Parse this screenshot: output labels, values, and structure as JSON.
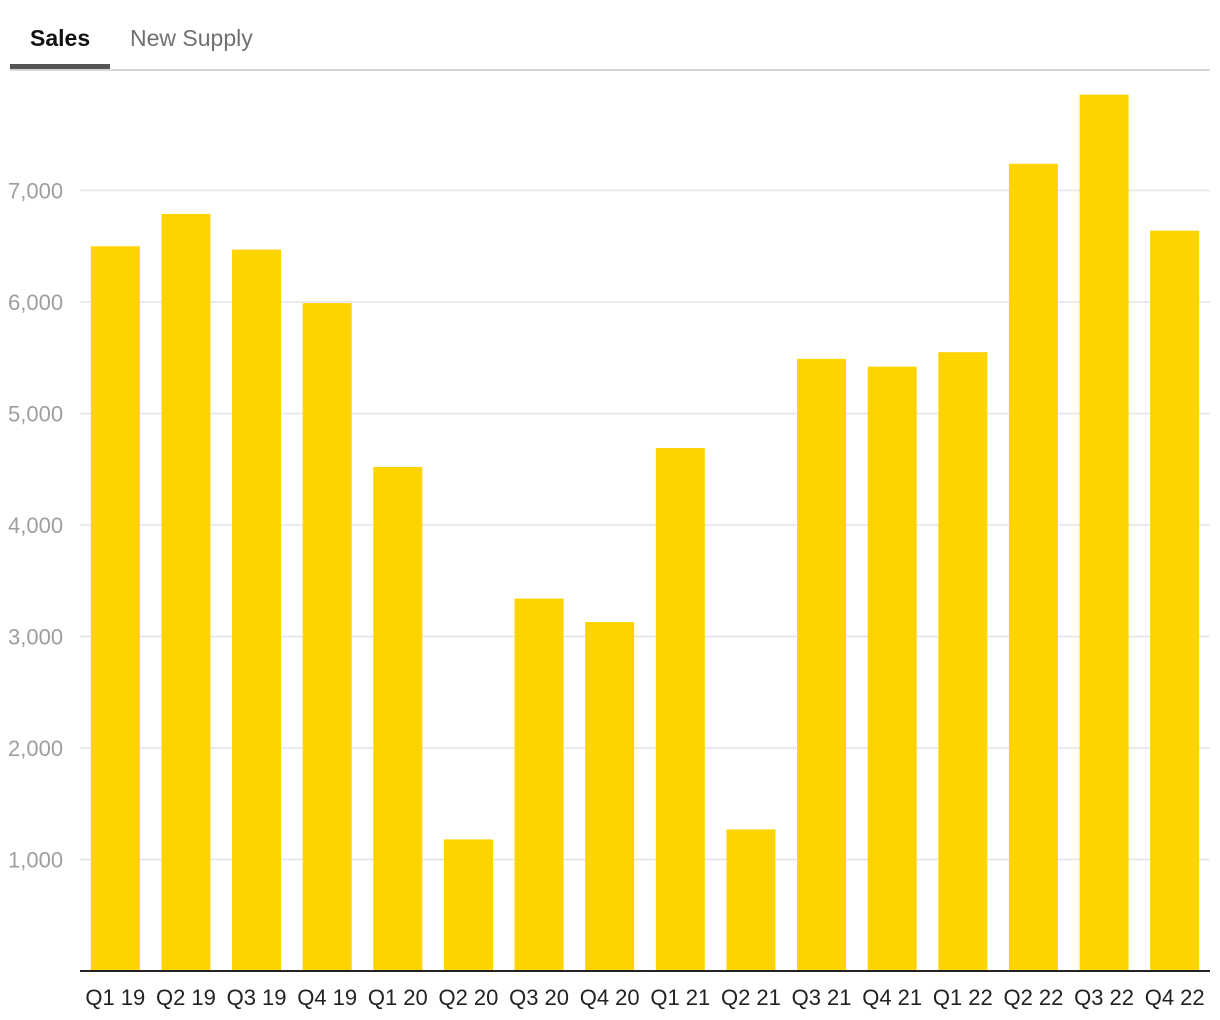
{
  "tabs": [
    {
      "label": "Sales",
      "active": true
    },
    {
      "label": "New Supply",
      "active": false
    }
  ],
  "colors": {
    "bar": "#FDD300",
    "grid": "#e3e3e3",
    "axis": "#222222",
    "tab_underline": "#555555"
  },
  "chart_data": {
    "type": "bar",
    "categories": [
      "Q1 19",
      "Q2 19",
      "Q3 19",
      "Q4 19",
      "Q1 20",
      "Q2 20",
      "Q3 20",
      "Q4 20",
      "Q1 21",
      "Q2 21",
      "Q3 21",
      "Q4 21",
      "Q1 22",
      "Q2 22",
      "Q3 22",
      "Q4 22"
    ],
    "values": [
      6500,
      6790,
      6470,
      5990,
      4520,
      1180,
      3340,
      3130,
      4690,
      1270,
      5490,
      5420,
      5550,
      7240,
      7860,
      6640
    ],
    "title": "",
    "xlabel": "",
    "ylabel": "",
    "ylim": [
      0,
      8000
    ],
    "yticks": [
      1000,
      2000,
      3000,
      4000,
      5000,
      6000,
      7000
    ],
    "ytick_labels": [
      "1,000",
      "2,000",
      "3,000",
      "4,000",
      "5,000",
      "6,000",
      "7,000"
    ],
    "grid": true,
    "legend": "none"
  }
}
